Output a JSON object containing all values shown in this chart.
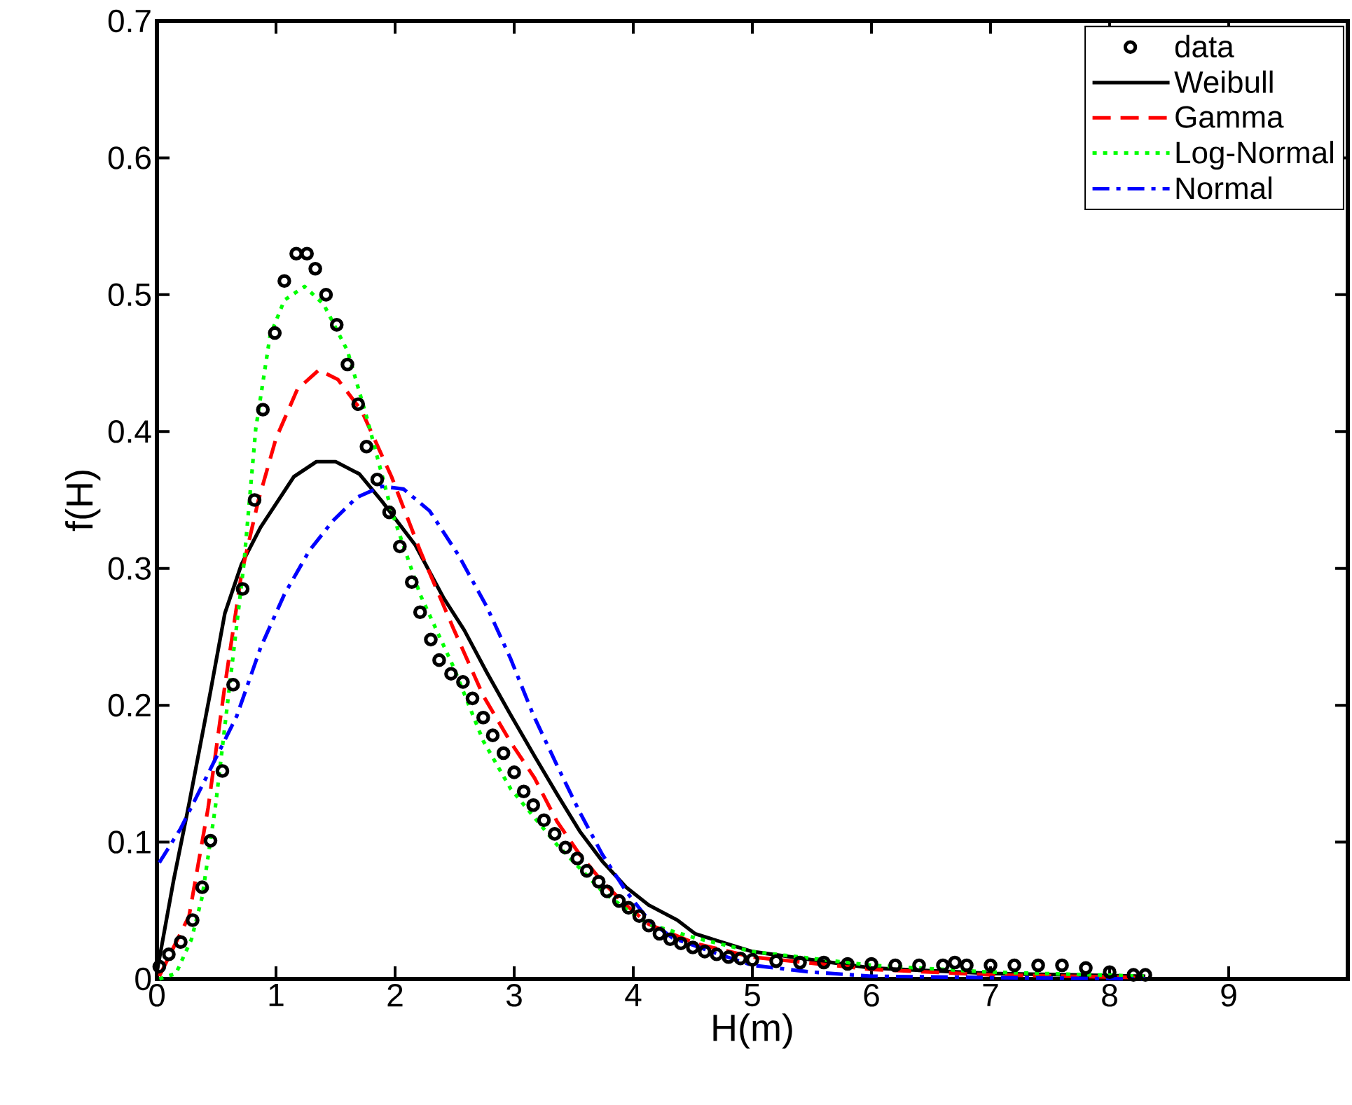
{
  "chart_data": {
    "type": "line",
    "xlabel": "H(m)",
    "ylabel": "f(H)",
    "xlim": [
      0,
      10
    ],
    "xticks": [
      0,
      1,
      2,
      3,
      4,
      5,
      6,
      7,
      8,
      9
    ],
    "ylim": [
      0,
      0.7
    ],
    "yticks": [
      0,
      0.1,
      0.2,
      0.3,
      0.4,
      0.5,
      0.6,
      0.7
    ],
    "legend": "top right",
    "grid": false,
    "series": [
      {
        "name": "data",
        "type": "scatter",
        "marker": "circle",
        "color": "#000000",
        "x": [
          0.02,
          0.1,
          0.2,
          0.3,
          0.38,
          0.45,
          0.55,
          0.64,
          0.72,
          0.82,
          0.89,
          0.99,
          1.07,
          1.17,
          1.26,
          1.33,
          1.42,
          1.51,
          1.6,
          1.69,
          1.76,
          1.85,
          1.95,
          2.04,
          2.14,
          2.21,
          2.3,
          2.37,
          2.47,
          2.57,
          2.65,
          2.74,
          2.82,
          2.91,
          3.0,
          3.08,
          3.16,
          3.25,
          3.34,
          3.43,
          3.53,
          3.61,
          3.71,
          3.78,
          3.88,
          3.96,
          4.05,
          4.13,
          4.22,
          4.31,
          4.4,
          4.5,
          4.6,
          4.7,
          4.8,
          4.9,
          5.0,
          5.2,
          5.4,
          5.6,
          5.8,
          6.0,
          6.2,
          6.4,
          6.6,
          6.7,
          6.8,
          7.0,
          7.2,
          7.4,
          7.6,
          7.8,
          8.0,
          8.2,
          8.3
        ],
        "values": [
          0.009,
          0.018,
          0.027,
          0.043,
          0.067,
          0.101,
          0.152,
          0.215,
          0.285,
          0.35,
          0.416,
          0.472,
          0.51,
          0.53,
          0.53,
          0.519,
          0.5,
          0.478,
          0.449,
          0.42,
          0.389,
          0.365,
          0.341,
          0.316,
          0.29,
          0.268,
          0.248,
          0.233,
          0.223,
          0.217,
          0.205,
          0.191,
          0.178,
          0.165,
          0.151,
          0.137,
          0.127,
          0.116,
          0.106,
          0.096,
          0.088,
          0.079,
          0.071,
          0.064,
          0.057,
          0.052,
          0.046,
          0.039,
          0.033,
          0.029,
          0.026,
          0.023,
          0.02,
          0.018,
          0.016,
          0.015,
          0.014,
          0.013,
          0.012,
          0.012,
          0.011,
          0.011,
          0.01,
          0.01,
          0.01,
          0.012,
          0.01,
          0.01,
          0.01,
          0.01,
          0.01,
          0.008,
          0.005,
          0.003,
          0.003
        ]
      },
      {
        "name": "Weibull",
        "line_style": "solid",
        "color": "#000000",
        "x": [
          0,
          0.14,
          0.27,
          0.45,
          0.57,
          0.71,
          0.87,
          1.15,
          1.34,
          1.5,
          1.7,
          1.89,
          2.17,
          2.41,
          2.58,
          2.77,
          2.97,
          3.17,
          3.36,
          3.55,
          3.74,
          3.94,
          4.13,
          4.37,
          4.52,
          5,
          6,
          7,
          8.3
        ],
        "values": [
          0.005,
          0.072,
          0.128,
          0.21,
          0.267,
          0.303,
          0.33,
          0.367,
          0.378,
          0.378,
          0.369,
          0.349,
          0.317,
          0.278,
          0.255,
          0.224,
          0.193,
          0.163,
          0.135,
          0.108,
          0.086,
          0.067,
          0.054,
          0.043,
          0.033,
          0.02,
          0.008,
          0.004,
          0.002
        ]
      },
      {
        "name": "Gamma",
        "line_style": "dashed",
        "color": "#ff0000",
        "x": [
          0.02,
          0.27,
          0.43,
          0.57,
          0.71,
          0.85,
          1.0,
          1.18,
          1.36,
          1.52,
          1.72,
          1.97,
          2.21,
          2.49,
          2.74,
          2.97,
          3.17,
          3.36,
          3.55,
          3.74,
          3.94,
          4.13,
          4.52,
          5,
          6,
          7,
          8.3
        ],
        "values": [
          0.002,
          0.046,
          0.125,
          0.214,
          0.296,
          0.349,
          0.395,
          0.431,
          0.445,
          0.438,
          0.415,
          0.367,
          0.313,
          0.256,
          0.207,
          0.173,
          0.147,
          0.115,
          0.091,
          0.071,
          0.054,
          0.04,
          0.026,
          0.016,
          0.007,
          0.003,
          0.001
        ]
      },
      {
        "name": "Log-Normal",
        "line_style": "dotted",
        "color": "#00ff00",
        "x": [
          0.02,
          0.16,
          0.29,
          0.38,
          0.49,
          0.61,
          0.73,
          0.83,
          0.95,
          1.07,
          1.24,
          1.4,
          1.6,
          1.76,
          1.97,
          2.21,
          2.49,
          2.74,
          2.97,
          3.16,
          3.36,
          3.55,
          3.74,
          3.94,
          4.13,
          4.52,
          5,
          6,
          7,
          8.3
        ],
        "values": [
          0.0,
          0.004,
          0.029,
          0.06,
          0.125,
          0.214,
          0.303,
          0.402,
          0.47,
          0.496,
          0.506,
          0.493,
          0.459,
          0.411,
          0.342,
          0.281,
          0.228,
          0.174,
          0.139,
          0.119,
          0.098,
          0.081,
          0.064,
          0.051,
          0.04,
          0.03,
          0.02,
          0.01,
          0.005,
          0.002
        ]
      },
      {
        "name": "Normal",
        "line_style": "dashdot",
        "color": "#0000ff",
        "x": [
          0.02,
          0.2,
          0.47,
          0.67,
          0.87,
          1.07,
          1.28,
          1.48,
          1.68,
          1.89,
          2.07,
          2.29,
          2.53,
          2.77,
          2.97,
          3.16,
          3.36,
          3.55,
          3.74,
          3.94,
          4.13,
          4.33,
          4.72,
          5,
          5.5,
          6,
          7,
          8.3
        ],
        "values": [
          0.085,
          0.11,
          0.157,
          0.192,
          0.242,
          0.281,
          0.313,
          0.335,
          0.352,
          0.36,
          0.358,
          0.342,
          0.31,
          0.272,
          0.234,
          0.193,
          0.156,
          0.122,
          0.091,
          0.064,
          0.043,
          0.03,
          0.018,
          0.01,
          0.005,
          0.002,
          0.001,
          0.0
        ]
      }
    ]
  }
}
